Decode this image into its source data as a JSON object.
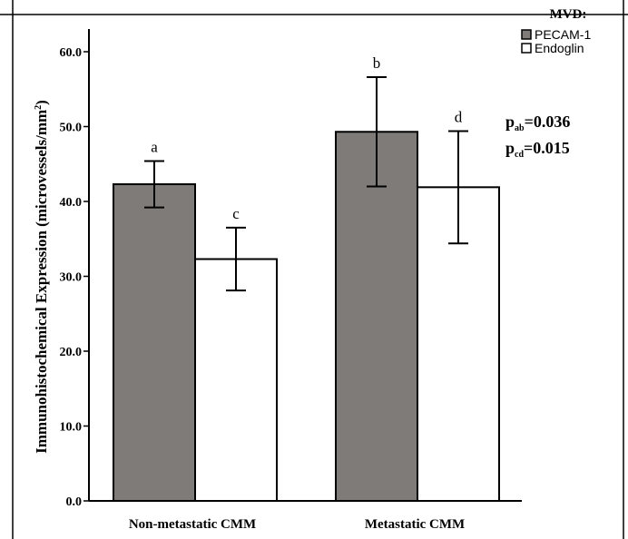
{
  "chart_data": {
    "type": "bar",
    "ylabel": "Immunohistochemical Expression (microvessels/mm2)",
    "ylabel_main": "Immunohistochemical Expression (microvessels/mm",
    "ylabel_sup": "2",
    "ylabel_close": ")",
    "categories": [
      "Non-metastatic CMM",
      "Metastatic CMM"
    ],
    "ylim": [
      0,
      60
    ],
    "yticks": [
      "0.0",
      "10.0",
      "20.0",
      "30.0",
      "40.0",
      "50.0",
      "60.0"
    ],
    "ytick_values": [
      0,
      10,
      20,
      30,
      40,
      50,
      60
    ],
    "grid": false,
    "legend": {
      "title": "MVD:",
      "placement": "top-right",
      "entries": [
        "PECAM-1",
        "Endoglin"
      ]
    },
    "series": [
      {
        "name": "PECAM-1",
        "color": "#7f7b78",
        "values": [
          42.3,
          49.3
        ],
        "error_low": [
          39.2,
          42.0
        ],
        "error_high": [
          45.4,
          56.6
        ],
        "labels": [
          "a",
          "b"
        ]
      },
      {
        "name": "Endoglin",
        "color": "#ffffff",
        "values": [
          32.3,
          41.9
        ],
        "error_low": [
          28.1,
          34.4
        ],
        "error_high": [
          36.5,
          49.4
        ],
        "labels": [
          "c",
          "d"
        ]
      }
    ],
    "annotations": [
      {
        "prefix": "p",
        "sub": "ab",
        "text": "=0.036"
      },
      {
        "prefix": "p",
        "sub": "cd",
        "text": "=0.015"
      }
    ]
  }
}
